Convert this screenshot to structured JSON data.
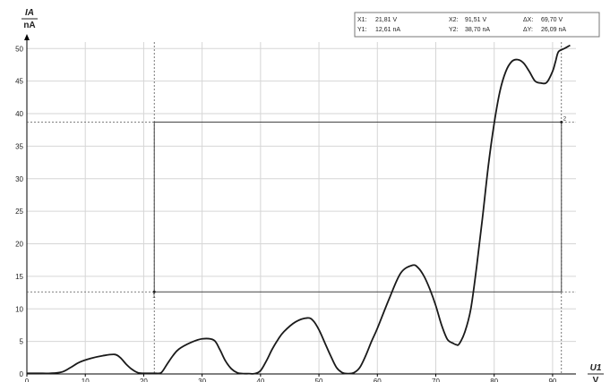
{
  "chart_data": {
    "type": "line",
    "xlabel": "U1",
    "xunit": "V",
    "ylabel": "IA",
    "yunit": "nA",
    "xlim": [
      0,
      94
    ],
    "ylim": [
      0,
      51
    ],
    "grid": true,
    "x_ticks": [
      0,
      10,
      20,
      30,
      40,
      50,
      60,
      70,
      80,
      90
    ],
    "y_ticks": [
      0,
      5,
      10,
      15,
      20,
      25,
      30,
      35,
      40,
      45,
      50
    ],
    "series": [
      {
        "x": [
          0,
          2,
          4,
          6,
          7.5,
          9,
          11,
          13,
          15,
          16,
          17,
          18,
          19,
          20,
          21,
          22,
          23,
          24,
          25,
          26,
          28,
          30,
          32,
          33,
          34,
          35,
          36,
          37,
          38,
          39,
          40,
          41,
          42,
          43,
          44,
          46,
          48,
          49,
          50,
          51,
          52,
          53,
          54,
          55,
          56,
          57,
          58,
          59,
          60,
          62,
          64,
          66,
          67,
          68,
          69,
          70,
          71,
          72,
          73,
          73.5,
          74,
          75,
          76,
          77,
          78,
          79,
          80,
          81,
          82,
          83,
          84,
          85,
          86,
          87,
          88,
          89,
          90,
          90.5,
          91,
          92,
          93
        ],
        "y": [
          0.1,
          0.1,
          0.1,
          0.3,
          1.0,
          1.8,
          2.4,
          2.8,
          3.0,
          2.5,
          1.5,
          0.7,
          0.2,
          0.1,
          0.1,
          0.1,
          0.2,
          1.5,
          2.8,
          3.8,
          4.8,
          5.4,
          5.2,
          3.8,
          2.0,
          0.8,
          0.2,
          0.05,
          0.05,
          0.05,
          0.5,
          2.0,
          3.8,
          5.3,
          6.5,
          8.0,
          8.6,
          8.2,
          6.8,
          4.8,
          2.8,
          1.0,
          0.2,
          0.05,
          0.2,
          1.0,
          2.8,
          5.0,
          7.0,
          11.5,
          15.5,
          16.7,
          16.3,
          15.0,
          13.0,
          10.5,
          7.5,
          5.3,
          4.7,
          4.5,
          4.6,
          6.5,
          10.0,
          16.5,
          24.0,
          32.0,
          38.5,
          43.5,
          46.5,
          48.0,
          48.3,
          47.8,
          46.5,
          45.0,
          44.7,
          44.8,
          46.5,
          48.0,
          49.5,
          50.0,
          50.5
        ]
      }
    ],
    "cursors": {
      "x1": 21.81,
      "y1": 12.61,
      "x2": 91.51,
      "y2": 38.7,
      "marker1_label": "1",
      "marker2_label": "2"
    }
  },
  "readout": {
    "x1_label": "X1:",
    "x1_value": "21,81 V",
    "y1_label": "Y1:",
    "y1_value": "12,61 nA",
    "x2_label": "X2:",
    "x2_value": "91,51 V",
    "y2_label": "Y2:",
    "y2_value": "38,70 nA",
    "dx_label": "ΔX:",
    "dx_value": "69,70 V",
    "dy_label": "ΔY:",
    "dy_value": "26,09 nA"
  }
}
